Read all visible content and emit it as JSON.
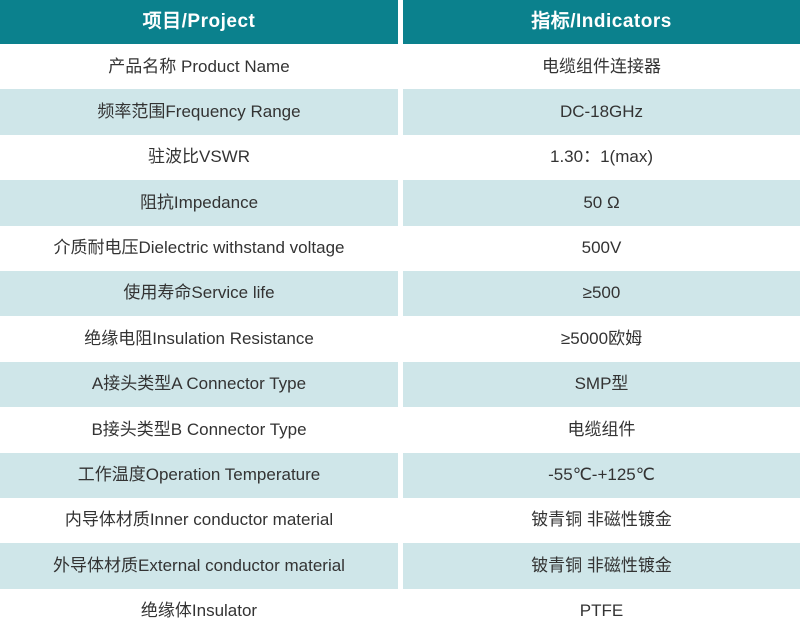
{
  "table": {
    "header": {
      "project": "项目/Project",
      "indicators": "指标/Indicators"
    },
    "rows": [
      {
        "project": "产品名称 Product Name",
        "indicator": "电缆组件连接器"
      },
      {
        "project": "频率范围Frequency Range",
        "indicator": "DC-18GHz"
      },
      {
        "project": "驻波比VSWR",
        "indicator": "1.30：1(max)"
      },
      {
        "project": "阻抗Impedance",
        "indicator": "50 Ω"
      },
      {
        "project": "介质耐电压Dielectric withstand voltage",
        "indicator": "500V"
      },
      {
        "project": "使用寿命Service life",
        "indicator": "≥500"
      },
      {
        "project": "绝缘电阻Insulation Resistance",
        "indicator": "≥5000欧姆"
      },
      {
        "project": "A接头类型A Connector Type",
        "indicator": "SMP型"
      },
      {
        "project": "B接头类型B Connector Type",
        "indicator": "电缆组件"
      },
      {
        "project": "工作温度Operation Temperature",
        "indicator": "-55℃-+125℃"
      },
      {
        "project": "内导体材质Inner conductor material",
        "indicator": "铍青铜 非磁性镀金"
      },
      {
        "project": "外导体材质External conductor material",
        "indicator": "铍青铜 非磁性镀金"
      },
      {
        "project": "绝缘体Insulator",
        "indicator": "PTFE"
      }
    ],
    "colors": {
      "header_bg": "#0b818d",
      "header_text": "#ffffff",
      "alt_row_bg": "#cfe6e9",
      "body_text": "#333333"
    }
  }
}
